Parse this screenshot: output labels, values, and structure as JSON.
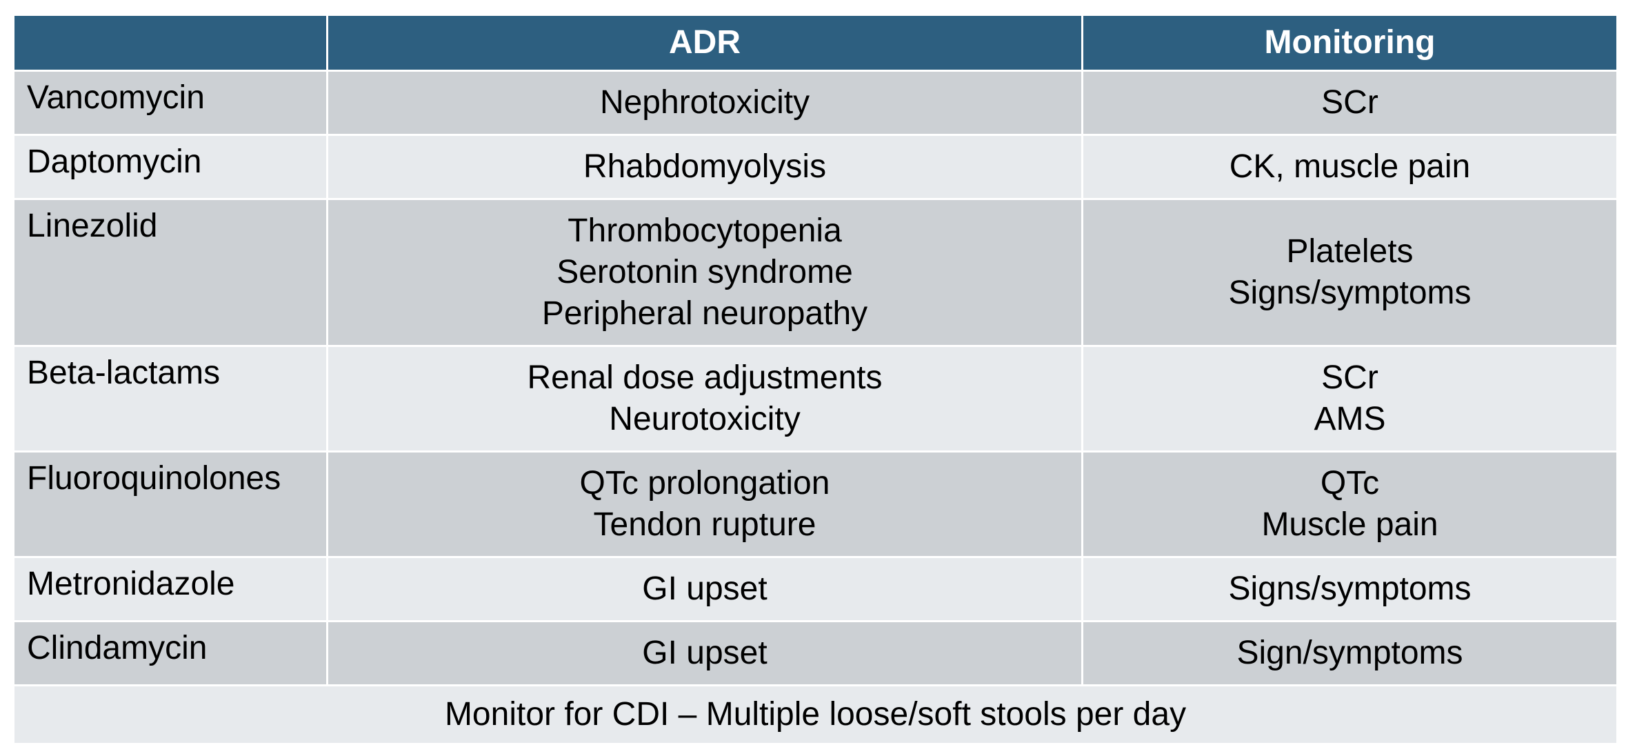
{
  "header": {
    "col0": "",
    "col1": "ADR",
    "col2": "Monitoring"
  },
  "rows": [
    {
      "drug": "Vancomycin",
      "adr": [
        "Nephrotoxicity"
      ],
      "monitoring": [
        "SCr"
      ]
    },
    {
      "drug": "Daptomycin",
      "adr": [
        "Rhabdomyolysis"
      ],
      "monitoring": [
        "CK, muscle pain"
      ]
    },
    {
      "drug": "Linezolid",
      "adr": [
        "Thrombocytopenia",
        "Serotonin syndrome",
        "Peripheral neuropathy"
      ],
      "monitoring": [
        "Platelets",
        "Signs/symptoms"
      ]
    },
    {
      "drug": "Beta-lactams",
      "adr": [
        "Renal dose adjustments",
        "Neurotoxicity"
      ],
      "monitoring": [
        "SCr",
        "AMS"
      ]
    },
    {
      "drug": "Fluoroquinolones",
      "adr": [
        "QTc prolongation",
        "Tendon rupture"
      ],
      "monitoring": [
        "QTc",
        "Muscle pain"
      ]
    },
    {
      "drug": "Metronidazole",
      "adr": [
        "GI upset"
      ],
      "monitoring": [
        "Signs/symptoms"
      ]
    },
    {
      "drug": "Clindamycin",
      "adr": [
        "GI upset"
      ],
      "monitoring": [
        "Sign/symptoms"
      ]
    }
  ],
  "footer": "Monitor for CDI – Multiple loose/soft stools per day",
  "colors": {
    "header_bg": "#2d5f80",
    "row_dark": "#ccd0d4",
    "row_light": "#e7eaed"
  }
}
